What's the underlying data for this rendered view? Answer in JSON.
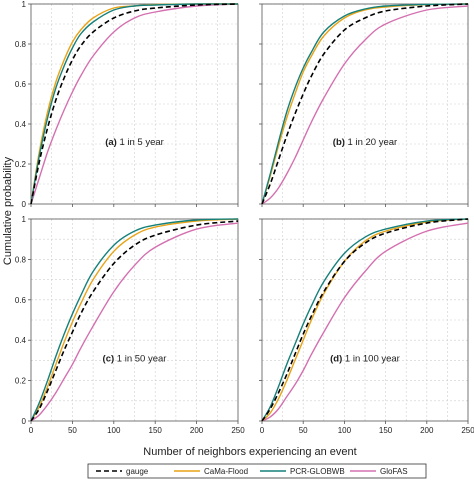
{
  "figure": {
    "ylabel": "Cumulative probability",
    "xlabel": "Number of neighbors experiencing an event"
  },
  "colors": {
    "gauge": "#000000",
    "cama": "#e8a317",
    "pcr": "#15807a",
    "glofas": "#d470b0",
    "grid": "#cfcfcf",
    "axis": "#555555"
  },
  "legend": [
    {
      "name": "gauge",
      "color_key": "gauge",
      "dashed": true
    },
    {
      "name": "CaMa-Flood",
      "color_key": "cama",
      "dashed": false
    },
    {
      "name": "PCR-GLOBWB",
      "color_key": "pcr",
      "dashed": false
    },
    {
      "name": "GloFAS",
      "color_key": "glofas",
      "dashed": false
    }
  ],
  "chart_data": [
    {
      "type": "line",
      "panel": "a",
      "label_bold": "(a)",
      "label_text": "1 in 5 year",
      "x": [
        0,
        10,
        20,
        30,
        40,
        50,
        60,
        75,
        100,
        125,
        150,
        200,
        250
      ],
      "xlim": [
        0,
        250
      ],
      "ylim": [
        0,
        1
      ],
      "xticks": [
        0,
        50,
        100,
        150,
        200,
        250
      ],
      "yticks": [
        0,
        0.2,
        0.4,
        0.6,
        0.8,
        1
      ],
      "show_xtick_labels": false,
      "show_ytick_labels": true,
      "series": [
        {
          "name": "gauge",
          "values": [
            0,
            0.21,
            0.38,
            0.52,
            0.63,
            0.72,
            0.79,
            0.86,
            0.93,
            0.965,
            0.98,
            0.995,
            1.0
          ]
        },
        {
          "name": "CaMa-Flood",
          "values": [
            0,
            0.26,
            0.46,
            0.61,
            0.72,
            0.81,
            0.87,
            0.93,
            0.98,
            0.99,
            0.997,
            1.0,
            1.0
          ]
        },
        {
          "name": "PCR-GLOBWB",
          "values": [
            0,
            0.24,
            0.43,
            0.58,
            0.69,
            0.78,
            0.85,
            0.91,
            0.97,
            0.99,
            0.995,
            1.0,
            1.0
          ]
        },
        {
          "name": "GloFAS",
          "values": [
            0,
            0.13,
            0.26,
            0.37,
            0.47,
            0.56,
            0.64,
            0.74,
            0.86,
            0.93,
            0.96,
            0.99,
            1.0
          ]
        }
      ]
    },
    {
      "type": "line",
      "panel": "b",
      "label_bold": "(b)",
      "label_text": "1 in 20 year",
      "x": [
        0,
        10,
        20,
        30,
        40,
        50,
        60,
        75,
        100,
        125,
        150,
        200,
        250
      ],
      "xlim": [
        0,
        250
      ],
      "ylim": [
        0,
        1
      ],
      "xticks": [
        0,
        50,
        100,
        150,
        200,
        250
      ],
      "yticks": [
        0,
        0.2,
        0.4,
        0.6,
        0.8,
        1
      ],
      "show_xtick_labels": false,
      "show_ytick_labels": false,
      "series": [
        {
          "name": "gauge",
          "values": [
            0,
            0.1,
            0.22,
            0.34,
            0.45,
            0.55,
            0.64,
            0.75,
            0.87,
            0.93,
            0.965,
            0.99,
            1.0
          ]
        },
        {
          "name": "CaMa-Flood",
          "values": [
            0,
            0.14,
            0.29,
            0.43,
            0.55,
            0.66,
            0.74,
            0.84,
            0.93,
            0.97,
            0.985,
            0.997,
            1.0
          ]
        },
        {
          "name": "PCR-GLOBWB",
          "values": [
            0,
            0.15,
            0.31,
            0.46,
            0.58,
            0.68,
            0.76,
            0.86,
            0.94,
            0.975,
            0.99,
            0.998,
            1.0
          ]
        },
        {
          "name": "GloFAS",
          "values": [
            0,
            0.03,
            0.08,
            0.15,
            0.23,
            0.32,
            0.41,
            0.53,
            0.7,
            0.82,
            0.9,
            0.97,
            0.99
          ]
        }
      ]
    },
    {
      "type": "line",
      "panel": "c",
      "label_bold": "(c)",
      "label_text": "1 in 50 year",
      "x": [
        0,
        10,
        20,
        30,
        40,
        50,
        60,
        75,
        100,
        125,
        150,
        200,
        250
      ],
      "xlim": [
        0,
        250
      ],
      "ylim": [
        0,
        1
      ],
      "xticks": [
        0,
        50,
        100,
        150,
        200,
        250
      ],
      "yticks": [
        0,
        0.2,
        0.4,
        0.6,
        0.8,
        1
      ],
      "show_xtick_labels": true,
      "show_ytick_labels": true,
      "series": [
        {
          "name": "gauge",
          "values": [
            0,
            0.06,
            0.15,
            0.25,
            0.35,
            0.44,
            0.53,
            0.64,
            0.78,
            0.87,
            0.92,
            0.97,
            0.99
          ]
        },
        {
          "name": "CaMa-Flood",
          "values": [
            0,
            0.07,
            0.17,
            0.28,
            0.39,
            0.49,
            0.58,
            0.7,
            0.84,
            0.92,
            0.96,
            0.99,
            1.0
          ]
        },
        {
          "name": "PCR-GLOBWB",
          "values": [
            0,
            0.09,
            0.2,
            0.32,
            0.43,
            0.53,
            0.62,
            0.74,
            0.87,
            0.94,
            0.97,
            0.995,
            1.0
          ]
        },
        {
          "name": "GloFAS",
          "values": [
            0,
            0.03,
            0.08,
            0.14,
            0.21,
            0.28,
            0.36,
            0.47,
            0.64,
            0.77,
            0.86,
            0.95,
            0.98
          ]
        }
      ]
    },
    {
      "type": "line",
      "panel": "d",
      "label_bold": "(d)",
      "label_text": "1 in 100 year",
      "x": [
        0,
        10,
        20,
        30,
        40,
        50,
        60,
        75,
        100,
        125,
        150,
        200,
        250
      ],
      "xlim": [
        0,
        250
      ],
      "ylim": [
        0,
        1
      ],
      "xticks": [
        0,
        50,
        100,
        150,
        200,
        250
      ],
      "yticks": [
        0,
        0.2,
        0.4,
        0.6,
        0.8,
        1
      ],
      "show_xtick_labels": true,
      "show_ytick_labels": false,
      "series": [
        {
          "name": "gauge",
          "values": [
            0,
            0.06,
            0.14,
            0.23,
            0.33,
            0.43,
            0.52,
            0.64,
            0.79,
            0.88,
            0.93,
            0.98,
            1.0
          ]
        },
        {
          "name": "CaMa-Flood",
          "values": [
            0,
            0.04,
            0.11,
            0.2,
            0.3,
            0.4,
            0.5,
            0.63,
            0.79,
            0.89,
            0.94,
            0.985,
            1.0
          ]
        },
        {
          "name": "PCR-GLOBWB",
          "values": [
            0,
            0.07,
            0.17,
            0.28,
            0.38,
            0.48,
            0.57,
            0.69,
            0.83,
            0.91,
            0.95,
            0.99,
            1.0
          ]
        },
        {
          "name": "GloFAS",
          "values": [
            0,
            0.02,
            0.06,
            0.12,
            0.18,
            0.25,
            0.33,
            0.44,
            0.61,
            0.74,
            0.84,
            0.94,
            0.98
          ]
        }
      ]
    }
  ]
}
